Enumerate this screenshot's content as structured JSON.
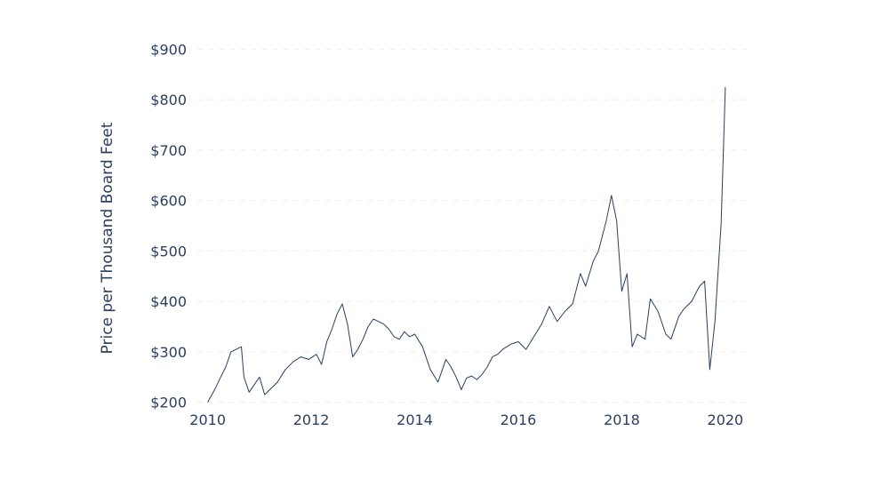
{
  "chart_data": {
    "type": "line",
    "title": "",
    "xlabel": "",
    "ylabel": "Price per Thousand Board Feet",
    "xlim": [
      2009.8,
      2020.5
    ],
    "ylim": [
      180,
      920
    ],
    "grid": true,
    "line_color": "#2a3f5f",
    "x_ticks": [
      2010,
      2012,
      2014,
      2016,
      2018,
      2020
    ],
    "x_tick_labels": [
      "2010",
      "2012",
      "2014",
      "2016",
      "2018",
      "2020"
    ],
    "y_ticks": [
      200,
      300,
      400,
      500,
      600,
      700,
      800,
      900
    ],
    "y_tick_labels": [
      "$200",
      "$300",
      "$400",
      "$500",
      "$600",
      "$700",
      "$800",
      "$900"
    ],
    "series": [
      {
        "x": [
          2010.0,
          2010.08,
          2010.15,
          2010.25,
          2010.35,
          2010.45,
          2010.55,
          2010.65,
          2010.7,
          2010.8,
          2010.9,
          2011.0,
          2011.1,
          2011.2,
          2011.35,
          2011.5,
          2011.65,
          2011.8,
          2011.95,
          2012.1,
          2012.2,
          2012.3,
          2012.4,
          2012.5,
          2012.6,
          2012.7,
          2012.8,
          2012.9,
          2013.0,
          2013.1,
          2013.2,
          2013.3,
          2013.4,
          2013.5,
          2013.6,
          2013.7,
          2013.8,
          2013.9,
          2014.0,
          2014.15,
          2014.3,
          2014.45,
          2014.6,
          2014.7,
          2014.8,
          2014.9,
          2015.0,
          2015.1,
          2015.2,
          2015.3,
          2015.4,
          2015.5,
          2015.6,
          2015.7,
          2015.85,
          2016.0,
          2016.15,
          2016.3,
          2016.45,
          2016.6,
          2016.75,
          2016.9,
          2017.05,
          2017.2,
          2017.3,
          2017.45,
          2017.55,
          2017.7,
          2017.8,
          2017.9,
          2018.0,
          2018.1,
          2018.2,
          2018.3,
          2018.45,
          2018.55,
          2018.7,
          2018.85,
          2018.95,
          2019.1,
          2019.2,
          2019.35,
          2019.5,
          2019.6,
          2019.7,
          2019.8,
          2019.92,
          2020.0
        ],
        "y": [
          200,
          215,
          228,
          250,
          270,
          300,
          305,
          310,
          250,
          220,
          235,
          250,
          215,
          225,
          240,
          265,
          280,
          290,
          285,
          295,
          275,
          320,
          345,
          375,
          395,
          355,
          290,
          305,
          325,
          350,
          365,
          360,
          355,
          345,
          330,
          325,
          340,
          330,
          335,
          310,
          265,
          240,
          285,
          270,
          250,
          225,
          248,
          252,
          245,
          255,
          270,
          290,
          295,
          305,
          315,
          320,
          305,
          330,
          355,
          390,
          360,
          380,
          395,
          455,
          430,
          480,
          500,
          560,
          610,
          560,
          420,
          455,
          310,
          335,
          325,
          405,
          380,
          335,
          325,
          370,
          385,
          400,
          430,
          440,
          265,
          360,
          555,
          825
        ]
      }
    ]
  }
}
